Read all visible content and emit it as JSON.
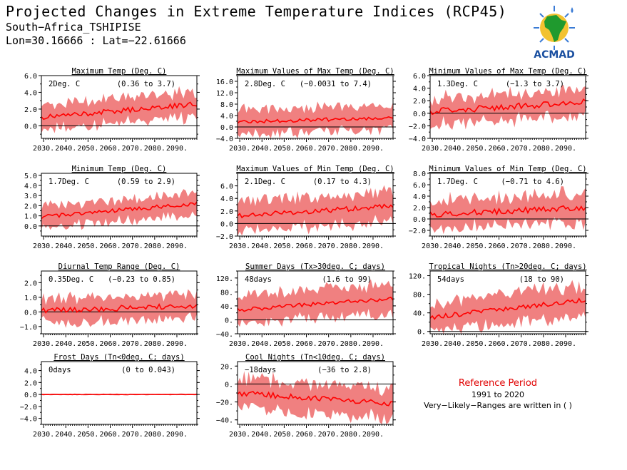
{
  "header": {
    "title": "Projected Changes in Extreme Temperature Indices (RCP45)",
    "location": "South−Africa_TSHIPISE",
    "coords": "Lon=30.16666 : Lat=−22.61666"
  },
  "logo": {
    "text": "ACMAD",
    "icon": "africa-map-icon",
    "accent": "#1f9a2e",
    "text_color": "#1a4fa0"
  },
  "reference": {
    "title": "Reference Period",
    "period": "1991 to 2020",
    "note": "Very−Likely−Ranges are written in ( )"
  },
  "colors": {
    "band": "#f08080",
    "line": "#ff0000"
  },
  "chart_data": [
    {
      "type": "line",
      "title": "Maximum Temp (Deg. C)",
      "value_label": "2Deg. C",
      "range_label": "(0.36 to 3.7)",
      "x_range": [
        2029,
        2099
      ],
      "ylim": [
        -1.5,
        6.0
      ],
      "yticks": [
        0,
        2,
        4,
        6
      ],
      "ytick_labels": [
        "0.0",
        "2.0",
        "4.0",
        "6.0"
      ],
      "xtick_labels": [
        "2030.",
        "2040.",
        "2050.",
        "2060.",
        "2070.",
        "2080.",
        "2090."
      ],
      "series": {
        "start": 1.0,
        "end": 2.6,
        "spread": 1.4,
        "noise": 0.3
      }
    },
    {
      "type": "line",
      "title": "Maximum Values of Max Temp (Deg. C)",
      "value_label": "2.8Deg. C",
      "range_label": "(−0.0031 to 7.4)",
      "x_range": [
        2029,
        2099
      ],
      "ylim": [
        -4.0,
        18.0
      ],
      "yticks": [
        -4,
        0,
        4,
        8,
        12,
        16
      ],
      "ytick_labels": [
        "−4.0",
        "0.0",
        "4.0",
        "8.0",
        "12.0",
        "16.0"
      ],
      "xtick_labels": [
        "2030.",
        "2040.",
        "2050.",
        "2060.",
        "2070.",
        "2080.",
        "2090."
      ],
      "series": {
        "start": 1.8,
        "end": 3.2,
        "spread": 4.0,
        "noise": 0.6
      }
    },
    {
      "type": "line",
      "title": "Minimum Values of Max Temp (Deg. C)",
      "value_label": "1.3Deg. C",
      "range_label": "(−1.3 to 3.7)",
      "x_range": [
        2029,
        2099
      ],
      "ylim": [
        -4.0,
        6.0
      ],
      "yticks": [
        -4,
        -2,
        0,
        2,
        4,
        6
      ],
      "ytick_labels": [
        "−4.0",
        "−2.0",
        "0.0",
        "2.0",
        "4.0",
        "6.0"
      ],
      "xtick_labels": [
        "2030.",
        "2040.",
        "2050.",
        "2060.",
        "2070.",
        "2080.",
        "2090."
      ],
      "series": {
        "start": 0.3,
        "end": 1.8,
        "spread": 2.0,
        "noise": 0.5
      }
    },
    {
      "type": "line",
      "title": "Minimum Temp (Deg. C)",
      "value_label": "1.7Deg. C",
      "range_label": "(0.59 to 2.9)",
      "x_range": [
        2029,
        2099
      ],
      "ylim": [
        -1.0,
        5.2
      ],
      "yticks": [
        0,
        1,
        2,
        3,
        4,
        5
      ],
      "ytick_labels": [
        "0.0",
        "1.0",
        "2.0",
        "3.0",
        "4.0",
        "5.0"
      ],
      "xtick_labels": [
        "2030.",
        "2040.",
        "2050.",
        "2060.",
        "2070.",
        "2080.",
        "2090."
      ],
      "series": {
        "start": 0.9,
        "end": 2.2,
        "spread": 1.0,
        "noise": 0.2
      }
    },
    {
      "type": "line",
      "title": "Maximum Values of Min Temp (Deg. C)",
      "value_label": "2.1Deg. C",
      "range_label": "(0.17 to 4.3)",
      "x_range": [
        2029,
        2099
      ],
      "ylim": [
        -2.0,
        8.0
      ],
      "yticks": [
        -2,
        0,
        2,
        4,
        6
      ],
      "ytick_labels": [
        "−2.0",
        "0.0",
        "2.0",
        "4.0",
        "6.0"
      ],
      "xtick_labels": [
        "2030.",
        "2040.",
        "2050.",
        "2060.",
        "2070.",
        "2080.",
        "2090."
      ],
      "series": {
        "start": 1.2,
        "end": 2.8,
        "spread": 2.2,
        "noise": 0.4
      }
    },
    {
      "type": "line",
      "title": "Minimum Values of Min Temp (Deg. C)",
      "value_label": "1.7Deg. C",
      "range_label": "(−0.71 to 4.6)",
      "x_range": [
        2029,
        2099
      ],
      "ylim": [
        -3.0,
        8.0
      ],
      "yticks": [
        -2,
        0,
        2,
        4,
        6,
        8
      ],
      "ytick_labels": [
        "−2.0",
        "0.0",
        "2.0",
        "4.0",
        "6.0",
        "8.0"
      ],
      "xtick_labels": [
        "2030.",
        "2040.",
        "2050.",
        "2060.",
        "2070.",
        "2080.",
        "2090."
      ],
      "series": {
        "start": 0.8,
        "end": 2.0,
        "spread": 2.4,
        "noise": 0.5
      }
    },
    {
      "type": "line",
      "title": "Diurnal Temp Range (Deg. C)",
      "value_label": "0.35Deg. C",
      "range_label": "(−0.23 to 0.85)",
      "x_range": [
        2029,
        2099
      ],
      "ylim": [
        -1.5,
        2.8
      ],
      "yticks": [
        -1,
        0,
        1,
        2
      ],
      "ytick_labels": [
        "−1.0",
        "0.0",
        "1.0",
        "2.0"
      ],
      "xtick_labels": [
        "2030.",
        "2040.",
        "2050.",
        "2060.",
        "2070.",
        "2080.",
        "2090."
      ],
      "series": {
        "start": 0.1,
        "end": 0.4,
        "spread": 0.8,
        "noise": 0.2
      }
    },
    {
      "type": "line",
      "title": "Summer Days (Tx>30deg. C; days)",
      "value_label": "48days",
      "range_label": "(1.6 to 99)",
      "x_range": [
        2029,
        2099
      ],
      "ylim": [
        -40,
        140
      ],
      "yticks": [
        -40,
        0,
        40,
        80,
        120
      ],
      "ytick_labels": [
        "−40.",
        "0.",
        "40.",
        "80.",
        "120."
      ],
      "xtick_labels": [
        "2030.",
        "2040.",
        "2050.",
        "2060.",
        "2070.",
        "2080.",
        "2090."
      ],
      "series": {
        "start": 28,
        "end": 62,
        "spread": 38,
        "noise": 6
      }
    },
    {
      "type": "line",
      "title": "Tropical Nights (Tn>20deg. C; days)",
      "value_label": "54days",
      "range_label": "(18 to 90)",
      "x_range": [
        2029,
        2099
      ],
      "ylim": [
        -5,
        130
      ],
      "yticks": [
        0,
        40,
        80,
        120
      ],
      "ytick_labels": [
        "0.",
        "40.",
        "80.",
        "120."
      ],
      "xtick_labels": [
        "2030.",
        "2040.",
        "2050.",
        "2060.",
        "2070.",
        "2080.",
        "2090."
      ],
      "series": {
        "start": 30,
        "end": 68,
        "spread": 30,
        "noise": 5
      }
    },
    {
      "type": "line",
      "title": "Frost Days (Tn<0deg. C; days)",
      "value_label": "0days",
      "range_label": "(0 to 0.043)",
      "x_range": [
        2029,
        2099
      ],
      "ylim": [
        -5.0,
        5.5
      ],
      "yticks": [
        -4,
        -2,
        0,
        2,
        4
      ],
      "ytick_labels": [
        "−4.0",
        "−2.0",
        "0.0",
        "2.0",
        "4.0"
      ],
      "xtick_labels": [
        "2030.",
        "2040.",
        "2050.",
        "2060.",
        "2070.",
        "2080.",
        "2090."
      ],
      "series": {
        "start": 0.0,
        "end": 0.0,
        "spread": 0.1,
        "noise": 0.02
      }
    },
    {
      "type": "line",
      "title": "Cool Nights (Tn<10deg. C; days)",
      "value_label": "−18days",
      "range_label": "(−36 to 2.8)",
      "x_range": [
        2029,
        2099
      ],
      "ylim": [
        -45,
        25
      ],
      "yticks": [
        -40,
        -20,
        0,
        20
      ],
      "ytick_labels": [
        "−40.",
        "−20.",
        "0.",
        "20."
      ],
      "xtick_labels": [
        "2030.",
        "2040.",
        "2050.",
        "2060.",
        "2070.",
        "2080.",
        "2090."
      ],
      "series": {
        "start": -10,
        "end": -22,
        "spread": 16,
        "noise": 3
      }
    }
  ]
}
